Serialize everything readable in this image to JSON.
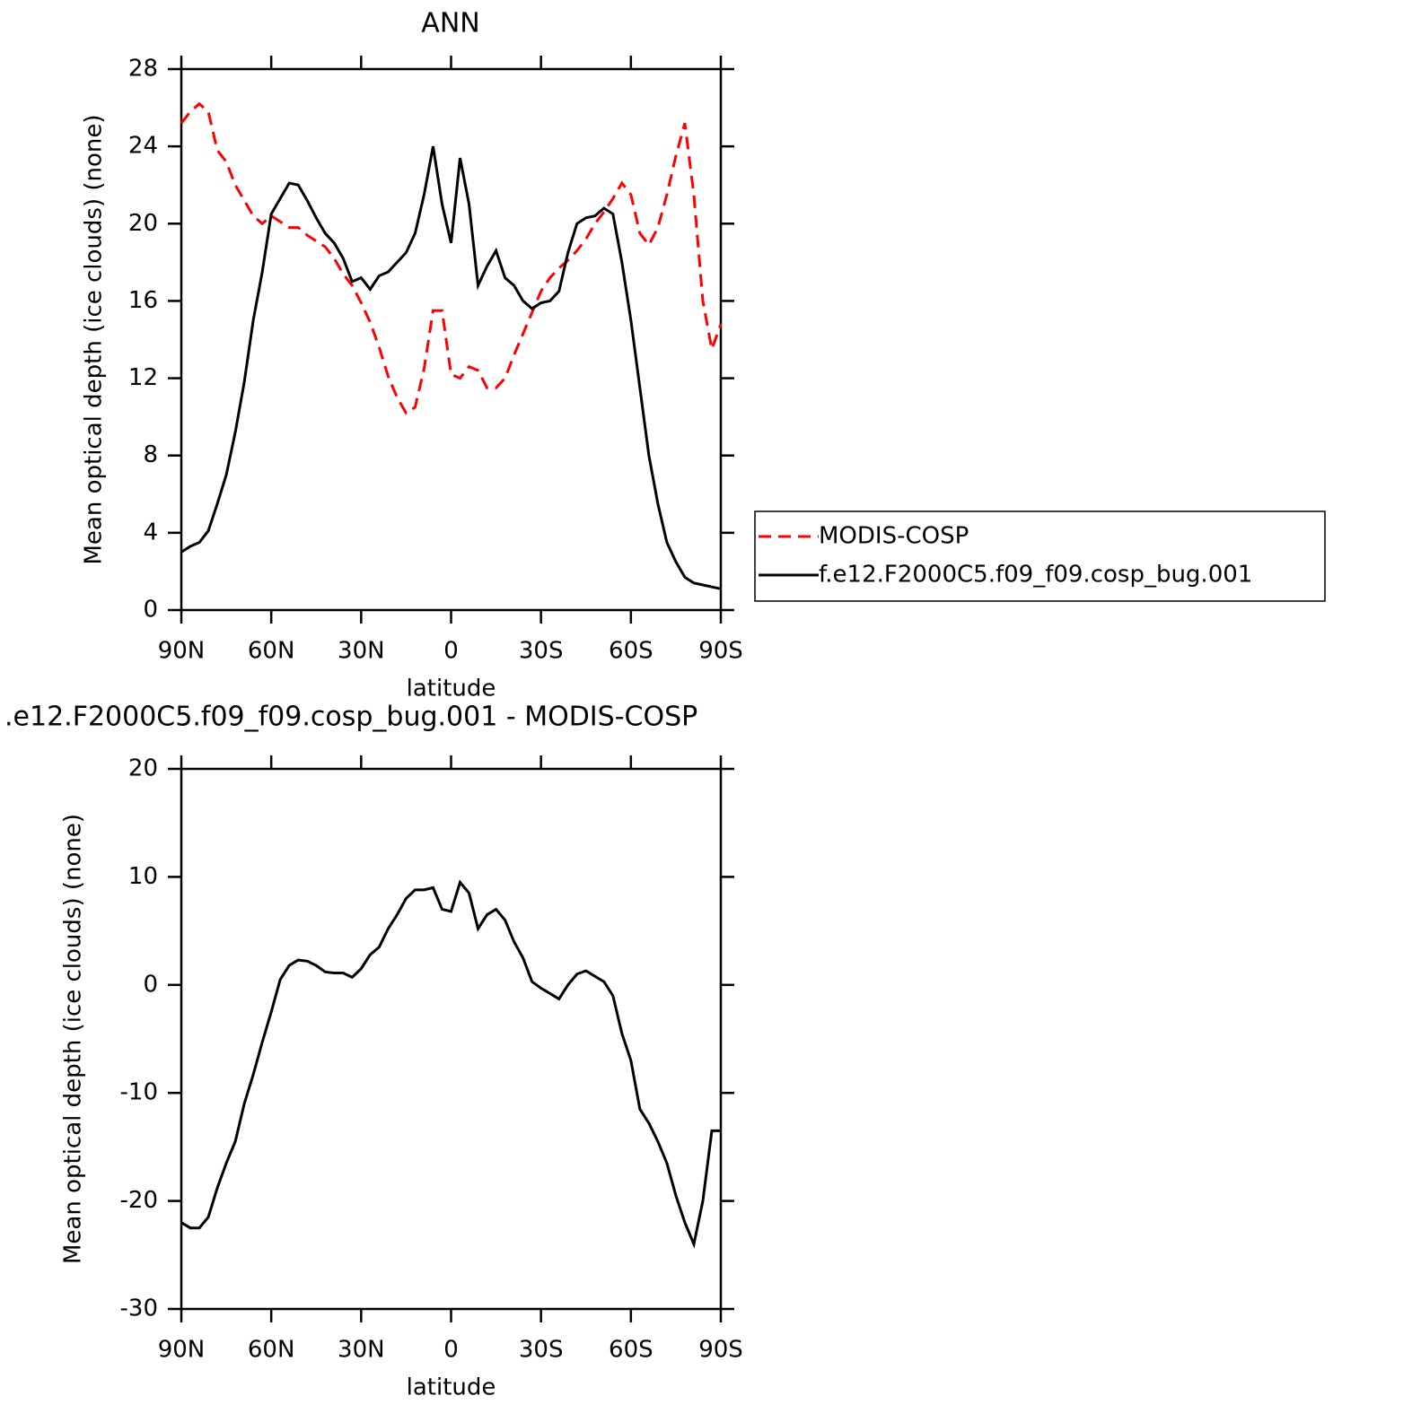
{
  "chart_data": [
    {
      "type": "line",
      "title": "ANN",
      "xlabel": "latitude",
      "ylabel": "Mean optical depth (ice clouds) (none)",
      "x": [
        90,
        87,
        84,
        81,
        78,
        75,
        72,
        69,
        66,
        63,
        60,
        57,
        54,
        51,
        48,
        45,
        42,
        39,
        36,
        33,
        30,
        27,
        24,
        21,
        18,
        15,
        12,
        9,
        6,
        3,
        0,
        -3,
        -6,
        -9,
        -12,
        -15,
        -18,
        -21,
        -24,
        -27,
        -30,
        -33,
        -36,
        -39,
        -42,
        -45,
        -48,
        -51,
        -54,
        -57,
        -60,
        -63,
        -66,
        -69,
        -72,
        -75,
        -78,
        -81,
        -84,
        -87,
        -90
      ],
      "xlim": [
        90,
        -90
      ],
      "xticks": [
        {
          "value": 90,
          "label": "90N"
        },
        {
          "value": 60,
          "label": "60N"
        },
        {
          "value": 30,
          "label": "30N"
        },
        0,
        {
          "value": -30,
          "label": "30S"
        },
        {
          "value": -60,
          "label": "60S"
        },
        {
          "value": -90,
          "label": "90S"
        }
      ],
      "ylim": [
        0,
        28
      ],
      "yticks": [
        0,
        4,
        8,
        12,
        16,
        20,
        24,
        28
      ],
      "legend": "right",
      "series": [
        {
          "name": "MODIS-COSP",
          "color": "#ff0000",
          "linestyle": "dashed",
          "values": [
            25.2,
            25.8,
            26.2,
            25.8,
            23.8,
            23.2,
            22.0,
            21.2,
            20.4,
            20.0,
            20.4,
            20.1,
            19.8,
            19.8,
            19.4,
            19.1,
            18.8,
            18.2,
            17.4,
            16.8,
            15.9,
            14.9,
            13.6,
            12.1,
            11.0,
            10.2,
            10.5,
            12.5,
            15.5,
            15.5,
            12.2,
            12.0,
            12.6,
            12.4,
            11.5,
            11.5,
            12.0,
            13.2,
            14.3,
            15.4,
            16.5,
            17.2,
            17.7,
            18.1,
            18.6,
            19.2,
            20.0,
            20.6,
            21.3,
            22.1,
            21.5,
            19.5,
            18.9,
            19.8,
            21.5,
            23.5,
            25.2,
            21.5,
            16.0,
            13.5,
            14.8
          ]
        },
        {
          "name": "f.e12.F2000C5.f09_f09.cosp_bug.001",
          "color": "#000000",
          "linestyle": "solid",
          "values": [
            3.0,
            3.3,
            3.5,
            4.1,
            5.5,
            7.0,
            9.2,
            11.8,
            15.0,
            17.5,
            20.5,
            21.3,
            22.1,
            22.0,
            21.2,
            20.3,
            19.5,
            19.0,
            18.2,
            17.0,
            17.2,
            16.6,
            17.3,
            17.5,
            18.0,
            18.5,
            19.5,
            21.5,
            24.0,
            21.0,
            19.0,
            23.4,
            21.0,
            16.8,
            17.8,
            18.6,
            17.2,
            16.8,
            16.0,
            15.6,
            15.9,
            16.0,
            16.5,
            18.5,
            20.0,
            20.3,
            20.4,
            20.8,
            20.5,
            18.0,
            15.0,
            11.5,
            8.0,
            5.5,
            3.5,
            2.5,
            1.7,
            1.4,
            1.3,
            1.2,
            1.1
          ]
        }
      ]
    },
    {
      "type": "line",
      "title": ".e12.F2000C5.f09_f09.cosp_bug.001 - MODIS-COSP",
      "xlabel": "latitude",
      "ylabel": "Mean optical depth (ice clouds) (none)",
      "x": [
        90,
        87,
        84,
        81,
        78,
        75,
        72,
        69,
        66,
        63,
        60,
        57,
        54,
        51,
        48,
        45,
        42,
        39,
        36,
        33,
        30,
        27,
        24,
        21,
        18,
        15,
        12,
        9,
        6,
        3,
        0,
        -3,
        -6,
        -9,
        -12,
        -15,
        -18,
        -21,
        -24,
        -27,
        -30,
        -33,
        -36,
        -39,
        -42,
        -45,
        -48,
        -51,
        -54,
        -57,
        -60,
        -63,
        -66,
        -69,
        -72,
        -75,
        -78,
        -81,
        -84,
        -87,
        -90
      ],
      "xlim": [
        90,
        -90
      ],
      "xticks": [
        {
          "value": 90,
          "label": "90N"
        },
        {
          "value": 60,
          "label": "60N"
        },
        {
          "value": 30,
          "label": "30N"
        },
        0,
        {
          "value": -30,
          "label": "30S"
        },
        {
          "value": -60,
          "label": "60S"
        },
        {
          "value": -90,
          "label": "90S"
        }
      ],
      "ylim": [
        -30,
        20
      ],
      "yticks": [
        -30,
        -20,
        -10,
        0,
        10,
        20
      ],
      "color": "#000000",
      "values": [
        -22.0,
        -22.5,
        -22.5,
        -21.5,
        -18.8,
        -16.5,
        -14.5,
        -11.0,
        -8.3,
        -5.3,
        -2.5,
        0.5,
        1.8,
        2.3,
        2.2,
        1.8,
        1.2,
        1.1,
        1.1,
        0.7,
        1.5,
        2.8,
        3.5,
        5.2,
        6.5,
        8.0,
        8.8,
        8.8,
        9.0,
        7.0,
        6.8,
        9.5,
        8.5,
        5.2,
        6.5,
        7.0,
        6.0,
        4.0,
        2.5,
        0.3,
        -0.3,
        -0.8,
        -1.3,
        0.0,
        1.0,
        1.3,
        0.8,
        0.3,
        -1.0,
        -4.5,
        -7.0,
        -11.5,
        -12.8,
        -14.5,
        -16.5,
        -19.5,
        -22.0,
        -24.0,
        -20.0,
        -13.5,
        -13.5
      ]
    }
  ]
}
